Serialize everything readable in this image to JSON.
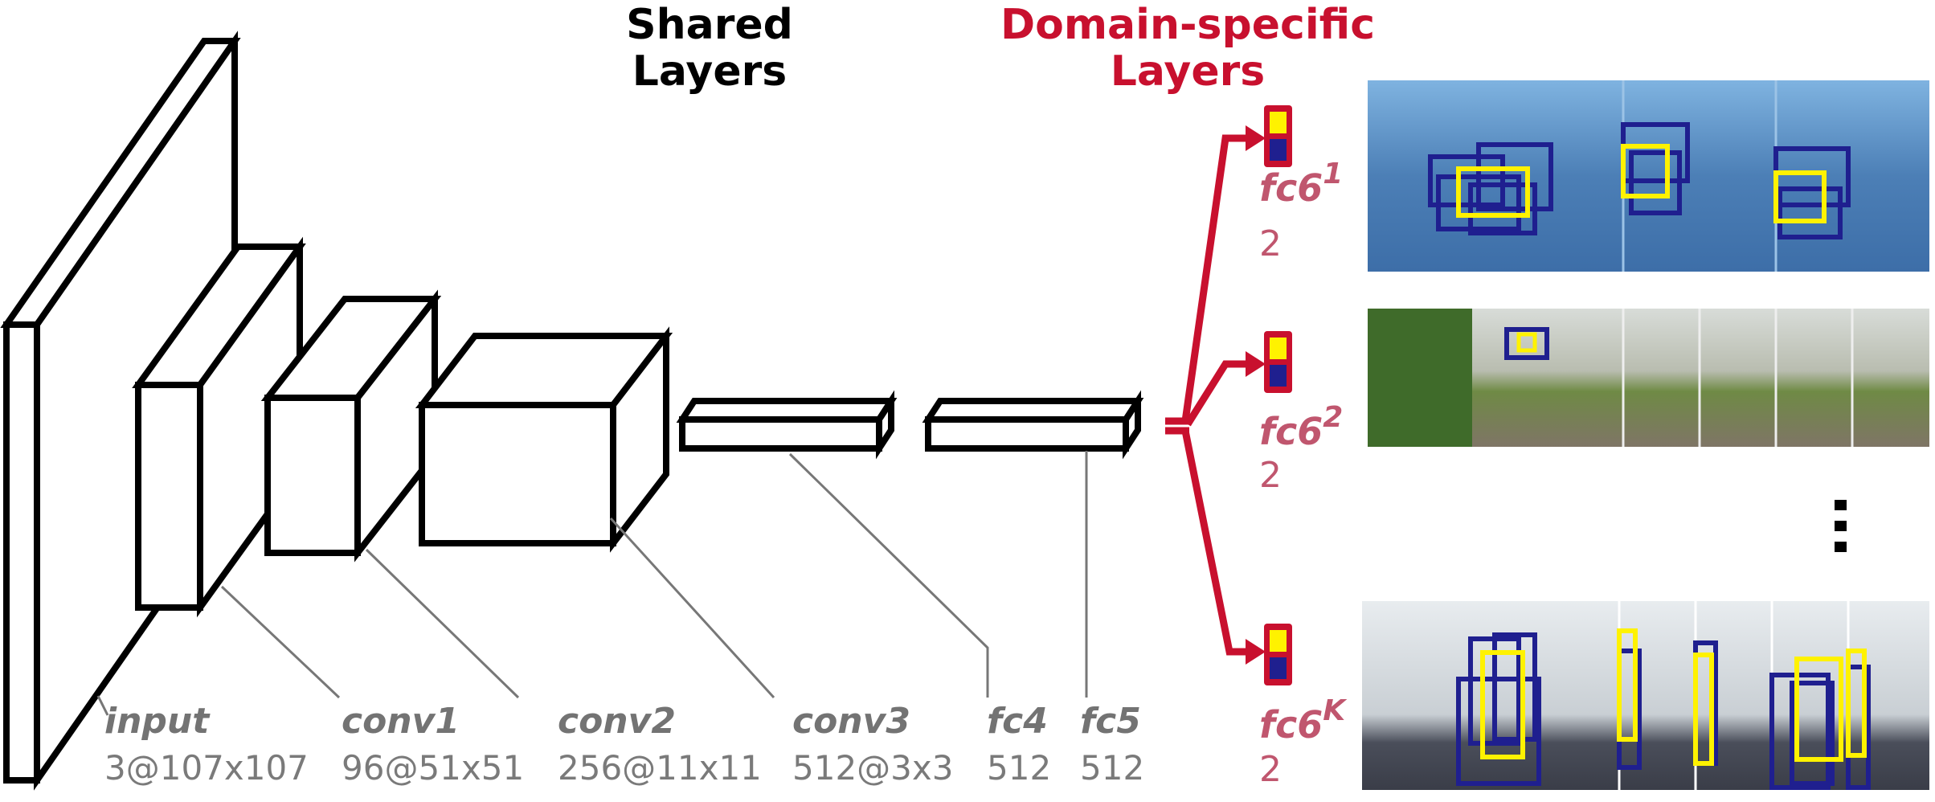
{
  "titles": {
    "shared": [
      "Shared",
      "Layers"
    ],
    "domain": [
      "Domain-specific",
      "Layers"
    ]
  },
  "layers": [
    {
      "name": "input",
      "dims": "3@107x107"
    },
    {
      "name": "conv1",
      "dims": "96@51x51"
    },
    {
      "name": "conv2",
      "dims": "256@11x11"
    },
    {
      "name": "conv3",
      "dims": "512@3x3"
    },
    {
      "name": "fc4",
      "dims": "512"
    },
    {
      "name": "fc5",
      "dims": "512"
    }
  ],
  "branches": [
    {
      "name": "fc6",
      "sup": "1",
      "size": "2",
      "scene": "street-cars"
    },
    {
      "name": "fc6",
      "sup": "2",
      "size": "2",
      "scene": "railway-bike"
    },
    {
      "name": "fc6",
      "sup": "K",
      "size": "2",
      "scene": "hallway-person"
    }
  ],
  "ellipsis": "vertical-dots",
  "colors": {
    "accent_red": "#c8102e",
    "branch_label": "#c0566e",
    "positive": "#fff200",
    "negative": "#1f1f8f",
    "leader": "#777777"
  }
}
